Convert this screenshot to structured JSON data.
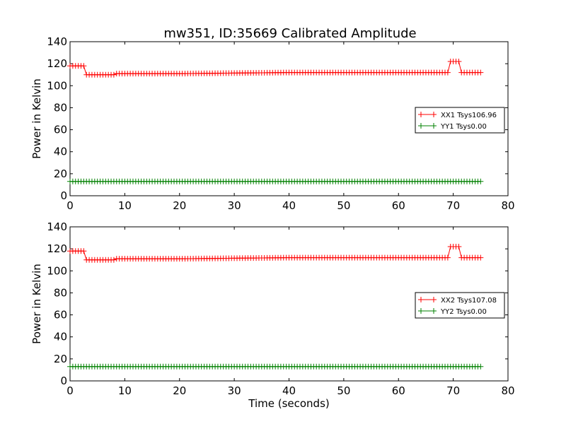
{
  "figure_title": "mw351, ID:35669 Calibrated Amplitude",
  "chart_data": [
    {
      "type": "line",
      "title": "mw351, ID:35669 Calibrated Amplitude",
      "xlabel": "",
      "ylabel": "Power in Kelvin",
      "xlim": [
        0,
        80
      ],
      "ylim": [
        0,
        140
      ],
      "xticks": [
        "0",
        "10",
        "20",
        "30",
        "40",
        "50",
        "60",
        "70",
        "80"
      ],
      "yticks": [
        "0",
        "20",
        "40",
        "60",
        "80",
        "100",
        "120",
        "140"
      ],
      "grid": false,
      "legend_position": "center-right",
      "marker": "+",
      "series": [
        {
          "name": "XX1 Tsys106.96",
          "color": "#ff0000",
          "x": [
            0,
            2.5,
            3,
            8,
            8.5,
            20,
            40,
            60,
            68,
            69,
            69.5,
            71,
            71.5,
            75
          ],
          "y": [
            118,
            118,
            110,
            110,
            111,
            111,
            112,
            112,
            112,
            112,
            122,
            122,
            112,
            112
          ]
        },
        {
          "name": "YY1 Tsys0.00",
          "color": "#008000",
          "x": [
            0,
            75
          ],
          "y": [
            13,
            13
          ]
        }
      ]
    },
    {
      "type": "line",
      "title": "",
      "xlabel": "Time (seconds)",
      "ylabel": "Power in Kelvin",
      "xlim": [
        0,
        80
      ],
      "ylim": [
        0,
        140
      ],
      "xticks": [
        "0",
        "10",
        "20",
        "30",
        "40",
        "50",
        "60",
        "70",
        "80"
      ],
      "yticks": [
        "0",
        "20",
        "40",
        "60",
        "80",
        "100",
        "120",
        "140"
      ],
      "grid": false,
      "legend_position": "center-right",
      "marker": "+",
      "series": [
        {
          "name": "XX2 Tsys107.08",
          "color": "#ff0000",
          "x": [
            0,
            2.5,
            3,
            8,
            8.5,
            20,
            40,
            60,
            68,
            69,
            69.5,
            71,
            71.5,
            75
          ],
          "y": [
            118,
            118,
            110,
            110,
            111,
            111,
            112,
            112,
            112,
            112,
            122,
            122,
            112,
            112
          ]
        },
        {
          "name": "YY2 Tsys0.00",
          "color": "#008000",
          "x": [
            0,
            75
          ],
          "y": [
            13,
            13
          ]
        }
      ]
    }
  ]
}
